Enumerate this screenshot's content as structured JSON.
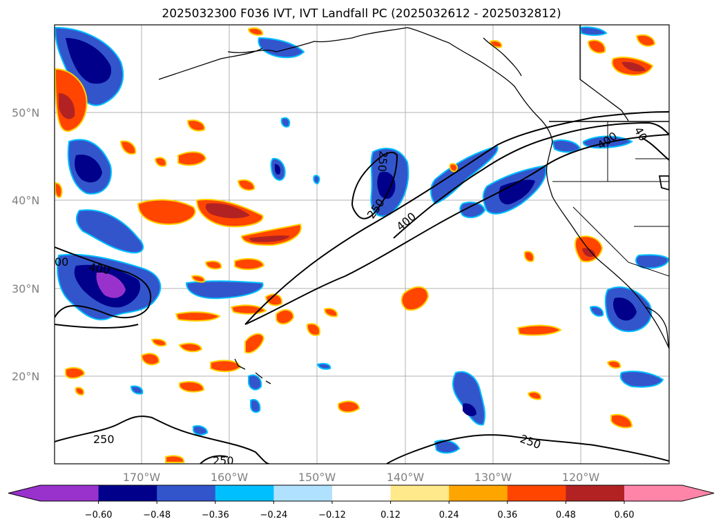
{
  "title": "2025032300 F036 IVT, IVT Landfall PC (2025032612 - 2025032812)",
  "lat_labels": [
    "50°N",
    "40°N",
    "30°N",
    "20°N"
  ],
  "lon_labels": [
    "170°W",
    "160°W",
    "150°W",
    "140°W",
    "130°W",
    "120°W"
  ],
  "contour_labels": [
    "250",
    "250",
    "400",
    "250",
    "250",
    "400",
    "250",
    "00",
    "400",
    "40"
  ],
  "colorbar": {
    "ticks": [
      "−0.60",
      "−0.48",
      "−0.36",
      "−0.24",
      "−0.12",
      "0.12",
      "0.24",
      "0.36",
      "0.48",
      "0.60"
    ],
    "colors": [
      "#9932cc",
      "#00008b",
      "#3355cc",
      "#00bfff",
      "#b0e2ff",
      "#ffffff",
      "#ffe98a",
      "#ffa500",
      "#ff4500",
      "#b22222",
      "#ff85a8"
    ]
  }
}
